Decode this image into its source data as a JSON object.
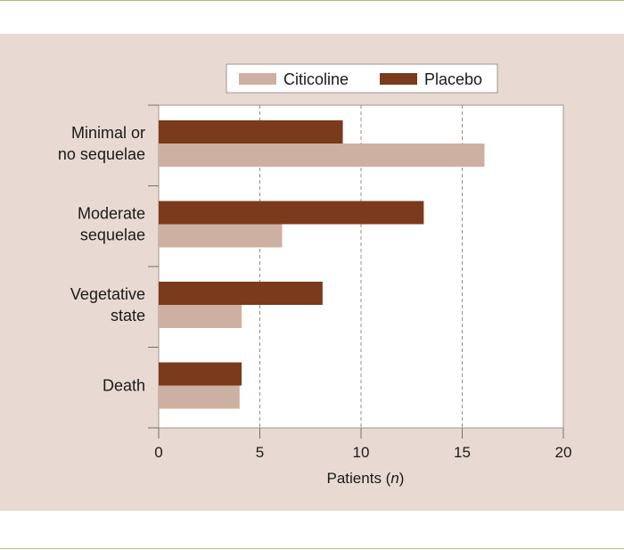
{
  "chart_data": {
    "type": "bar",
    "orientation": "horizontal",
    "categories": [
      [
        "Minimal or",
        "no sequelae"
      ],
      [
        "Moderate",
        "sequelae"
      ],
      [
        "Vegetative",
        "state"
      ],
      [
        "Death"
      ]
    ],
    "series": [
      {
        "name": "Placebo",
        "color": "#7b3a1c",
        "values": [
          9.1,
          13.1,
          8.1,
          4.1
        ]
      },
      {
        "name": "Citicoline",
        "color": "#cdb0a2",
        "values": [
          16.1,
          6.1,
          4.1,
          4.0
        ]
      }
    ],
    "legend_order": [
      "Citicoline",
      "Placebo"
    ],
    "xlim": [
      0,
      20
    ],
    "xticks": [
      0,
      5,
      10,
      15,
      20
    ],
    "xlabel_prefix": "Patients (",
    "xlabel_italic": "n",
    "xlabel_suffix": ")",
    "grid": "vertical dashed",
    "legend_position": "top"
  }
}
